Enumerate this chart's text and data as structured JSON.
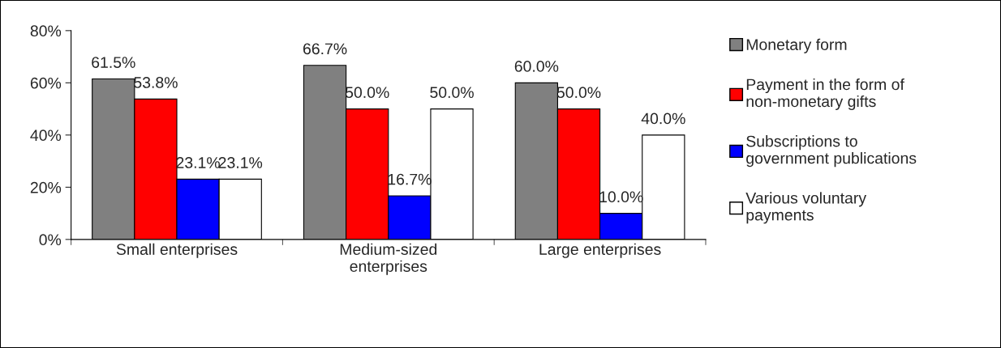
{
  "chart_data": {
    "type": "bar",
    "categories": [
      "Small enterprises",
      "Medium-sized\nenterprises",
      "Large enterprises"
    ],
    "series": [
      {
        "name": "Monetary form",
        "color": "#808080",
        "values": [
          61.5,
          66.7,
          60.0
        ],
        "value_labels": [
          "61.5%",
          "66.7%",
          "60.0%"
        ]
      },
      {
        "name": "Payment in the form of\nnon-monetary gifts",
        "color": "#ff0000",
        "values": [
          53.8,
          50.0,
          50.0
        ],
        "value_labels": [
          "53.8%",
          "50.0%",
          "50.0%"
        ]
      },
      {
        "name": "Subscriptions to\ngovernment publications",
        "color": "#0000ff",
        "values": [
          23.1,
          16.7,
          10.0
        ],
        "value_labels": [
          "23.1%",
          "16.7%",
          "10.0%"
        ]
      },
      {
        "name": "Various voluntary\npayments",
        "color": "#ffffff",
        "values": [
          23.1,
          50.0,
          40.0
        ],
        "value_labels": [
          "23.1%",
          "50.0%",
          "40.0%"
        ]
      }
    ],
    "ylim": [
      0,
      80
    ],
    "yticks": [
      {
        "value": 0,
        "label": "0%"
      },
      {
        "value": 20,
        "label": "20%"
      },
      {
        "value": 40,
        "label": "40%"
      },
      {
        "value": 60,
        "label": "60%"
      },
      {
        "value": 80,
        "label": "80%"
      }
    ],
    "grid": false,
    "legend": "right"
  }
}
